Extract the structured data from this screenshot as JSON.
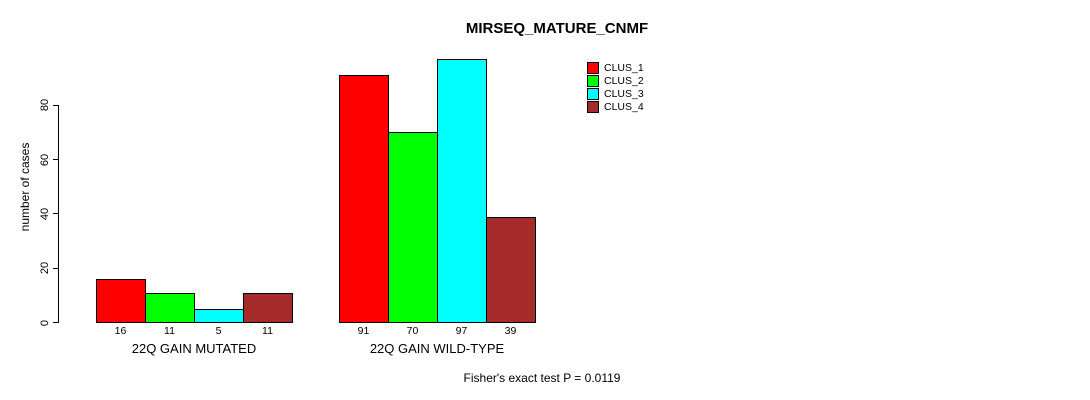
{
  "title": "MIRSEQ_MATURE_CNMF",
  "chart_data": {
    "type": "bar",
    "title": "MIRSEQ_MATURE_CNMF",
    "subtitle": "Fisher's exact test P = 0.0119",
    "xlabel": "",
    "ylabel": "number of cases",
    "ylim": [
      0,
      80
    ],
    "yticks": [
      0,
      20,
      40,
      60,
      80
    ],
    "grid": false,
    "bar_borders": true,
    "value_labels_shown": true,
    "legend_position": "top-right",
    "categories": [
      "22Q GAIN MUTATED",
      "22Q GAIN WILD-TYPE"
    ],
    "series": [
      {
        "name": "CLUS_1",
        "color": "#FF0000",
        "values": [
          16,
          91
        ]
      },
      {
        "name": "CLUS_2",
        "color": "#00FF00",
        "values": [
          11,
          70
        ]
      },
      {
        "name": "CLUS_3",
        "color": "#00FFFF",
        "values": [
          5,
          97
        ]
      },
      {
        "name": "CLUS_4",
        "color": "#A52A2A",
        "values": [
          11,
          39
        ]
      }
    ],
    "colors": {
      "background": "#FFFFFF",
      "axis": "#000000",
      "text": "#000000"
    }
  }
}
